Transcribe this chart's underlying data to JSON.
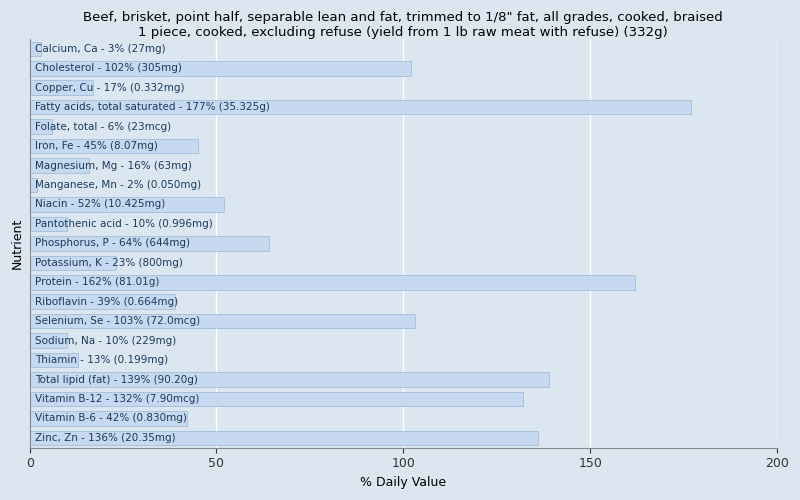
{
  "title": "Beef, brisket, point half, separable lean and fat, trimmed to 1/8\" fat, all grades, cooked, braised\n1 piece, cooked, excluding refuse (yield from 1 lb raw meat with refuse) (332g)",
  "xlabel": "% Daily Value",
  "ylabel": "Nutrient",
  "xlim": [
    0,
    200
  ],
  "xticks": [
    0,
    50,
    100,
    150,
    200
  ],
  "background_color": "#dce6f1",
  "plot_bg_color": "#dce6f1",
  "bar_color": "#c6d9f1",
  "bar_edge_color": "#9ab7d3",
  "text_color": "#1a3a5c",
  "nutrients": [
    {
      "name": "Calcium, Ca - 3% (27mg)",
      "value": 3
    },
    {
      "name": "Cholesterol - 102% (305mg)",
      "value": 102
    },
    {
      "name": "Copper, Cu - 17% (0.332mg)",
      "value": 17
    },
    {
      "name": "Fatty acids, total saturated - 177% (35.325g)",
      "value": 177
    },
    {
      "name": "Folate, total - 6% (23mcg)",
      "value": 6
    },
    {
      "name": "Iron, Fe - 45% (8.07mg)",
      "value": 45
    },
    {
      "name": "Magnesium, Mg - 16% (63mg)",
      "value": 16
    },
    {
      "name": "Manganese, Mn - 2% (0.050mg)",
      "value": 2
    },
    {
      "name": "Niacin - 52% (10.425mg)",
      "value": 52
    },
    {
      "name": "Pantothenic acid - 10% (0.996mg)",
      "value": 10
    },
    {
      "name": "Phosphorus, P - 64% (644mg)",
      "value": 64
    },
    {
      "name": "Potassium, K - 23% (800mg)",
      "value": 23
    },
    {
      "name": "Protein - 162% (81.01g)",
      "value": 162
    },
    {
      "name": "Riboflavin - 39% (0.664mg)",
      "value": 39
    },
    {
      "name": "Selenium, Se - 103% (72.0mcg)",
      "value": 103
    },
    {
      "name": "Sodium, Na - 10% (229mg)",
      "value": 10
    },
    {
      "name": "Thiamin - 13% (0.199mg)",
      "value": 13
    },
    {
      "name": "Total lipid (fat) - 139% (90.20g)",
      "value": 139
    },
    {
      "name": "Vitamin B-12 - 132% (7.90mcg)",
      "value": 132
    },
    {
      "name": "Vitamin B-6 - 42% (0.830mg)",
      "value": 42
    },
    {
      "name": "Zinc, Zn - 136% (20.35mg)",
      "value": 136
    }
  ],
  "title_fontsize": 9.5,
  "axis_label_fontsize": 9,
  "tick_fontsize": 9,
  "bar_label_fontsize": 7.5,
  "bar_height": 0.75,
  "figsize": [
    8.0,
    5.0
  ],
  "dpi": 100
}
